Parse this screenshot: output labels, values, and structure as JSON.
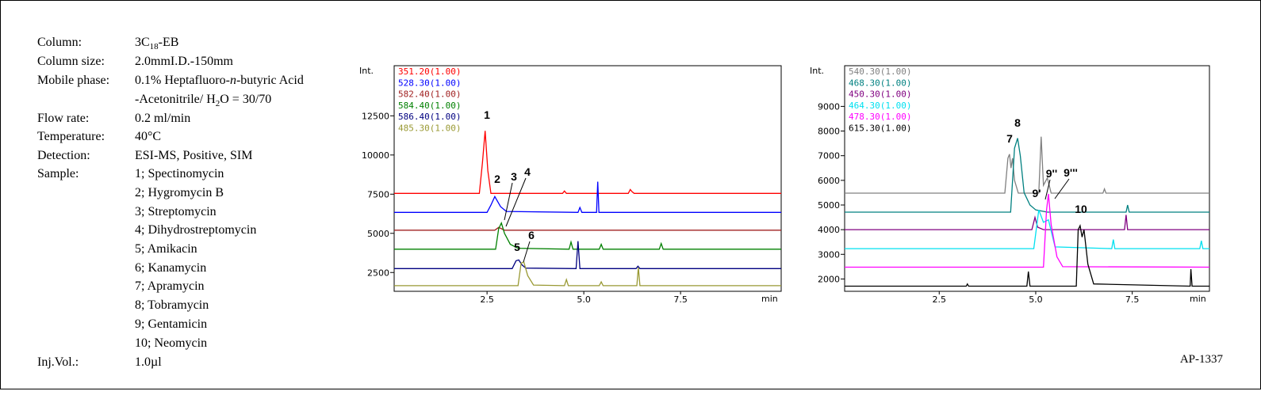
{
  "conditions": [
    {
      "label": "Column:",
      "value": [
        "3C",
        "18",
        "-EB"
      ]
    },
    {
      "label": "Column size:",
      "value": [
        "2.0mmI.D.-150mm"
      ]
    },
    {
      "label": "Mobile phase:",
      "value": [
        "0.1% Heptafluoro-",
        "n",
        "-butyric Acid"
      ],
      "value2": [
        "-Acetonitrile/ H",
        "2",
        "O = 30/70"
      ]
    },
    {
      "label": "Flow rate:",
      "value": [
        "0.2 ml/min"
      ]
    },
    {
      "label": "Temperature:",
      "value": [
        "40°C"
      ]
    },
    {
      "label": "Detection:",
      "value": [
        "ESI-MS, Positive, SIM"
      ]
    },
    {
      "label": "Sample:",
      "values": [
        "1; Spectinomycin",
        "2; Hygromycin B",
        "3; Streptomycin",
        "4; Dihydrostreptomycin",
        "5; Amikacin",
        "6; Kanamycin",
        "7; Apramycin",
        "8; Tobramycin",
        "9; Gentamicin",
        "10; Neomycin"
      ]
    },
    {
      "label": "Inj.Vol.:",
      "value": [
        "1.0µl"
      ]
    }
  ],
  "code": "AP-1337",
  "chart_data": [
    {
      "type": "line",
      "y_label": "Int.",
      "x_label": "min",
      "xlim": [
        0.1,
        10.1
      ],
      "xticks": [
        2.5,
        {
          "value": 5,
          "label": "5.0"
        },
        7.5
      ],
      "ylim": [
        1300,
        15700
      ],
      "yticks": [
        2500,
        5000,
        7500,
        10000,
        12500
      ],
      "annotations": [
        "1",
        "2",
        "3",
        "4",
        "5",
        "6"
      ],
      "series": [
        {
          "name": "351.20(1.00)",
          "color": "#ff0000",
          "x": [
            0.1,
            2.3,
            2.38,
            2.45,
            2.52,
            2.6,
            4.45,
            4.5,
            4.55,
            6.15,
            6.2,
            6.25,
            6.3,
            10.1
          ],
          "values": [
            7550,
            7550,
            9500,
            11540,
            9000,
            7550,
            7550,
            7700,
            7550,
            7550,
            7800,
            7650,
            7550,
            7550
          ]
        },
        {
          "name": "528.30(1.00)",
          "color": "#0000ff",
          "x": [
            0.1,
            2.5,
            2.6,
            2.7,
            2.85,
            3.0,
            4.85,
            4.9,
            4.95,
            5.33,
            5.36,
            5.39,
            10.1
          ],
          "values": [
            6340,
            6340,
            6800,
            7350,
            6700,
            6400,
            6340,
            6650,
            6340,
            6340,
            8300,
            6340,
            6340
          ]
        },
        {
          "name": "582.40(1.00)",
          "color": "#a02020",
          "x": [
            0.1,
            2.7,
            2.8,
            2.95,
            10.1
          ],
          "values": [
            5200,
            5200,
            5380,
            5200,
            5200
          ]
        },
        {
          "name": "584.40(1.00)",
          "color": "#008000",
          "x": [
            0.1,
            2.72,
            2.8,
            2.87,
            2.95,
            3.1,
            3.3,
            4.62,
            4.67,
            4.72,
            5.4,
            5.45,
            5.5,
            6.95,
            7.0,
            7.05,
            10.1
          ],
          "values": [
            3990,
            3990,
            5300,
            5660,
            5000,
            4300,
            4050,
            3990,
            4450,
            3990,
            3990,
            4300,
            3990,
            3990,
            4350,
            3990,
            3990
          ]
        },
        {
          "name": "586.40(1.00)",
          "color": "#000080",
          "x": [
            0.1,
            3.15,
            3.25,
            3.32,
            3.4,
            3.5,
            4.8,
            4.85,
            4.9,
            6.35,
            6.4,
            6.45,
            10.1
          ],
          "values": [
            2750,
            2750,
            3250,
            3300,
            3000,
            2780,
            2750,
            4500,
            2750,
            2750,
            2900,
            2750,
            2750
          ]
        },
        {
          "name": "485.30(1.00)",
          "color": "#999933",
          "x": [
            0.1,
            3.3,
            3.38,
            3.45,
            3.55,
            3.7,
            4.5,
            4.55,
            4.6,
            5.4,
            5.45,
            5.5,
            6.37,
            6.41,
            6.45,
            10.1
          ],
          "values": [
            1660,
            1660,
            3100,
            3170,
            2300,
            1700,
            1660,
            2050,
            1660,
            1660,
            1900,
            1660,
            1660,
            2820,
            1660,
            1660
          ]
        }
      ]
    },
    {
      "type": "line",
      "y_label": "Int.",
      "x_label": "min",
      "xlim": [
        0.05,
        9.5
      ],
      "xticks": [
        2.5,
        {
          "value": 5,
          "label": "5.0"
        },
        7.5
      ],
      "ylim": [
        1500,
        10650
      ],
      "yticks": [
        2000,
        3000,
        4000,
        5000,
        6000,
        7000,
        8000,
        9000
      ],
      "annotations": [
        "7",
        "8",
        "9'",
        "9''",
        "9'''",
        "10"
      ],
      "series": [
        {
          "name": "540.30(1.00)",
          "color": "#808080",
          "x": [
            0.05,
            4.2,
            4.28,
            4.32,
            4.36,
            4.4,
            4.45,
            4.55,
            5.08,
            5.14,
            5.2,
            5.3,
            5.4,
            6.74,
            6.78,
            6.82,
            9.5
          ],
          "values": [
            5480,
            5480,
            6900,
            7060,
            6500,
            6900,
            6000,
            5480,
            5480,
            7770,
            5800,
            6100,
            5480,
            5480,
            5650,
            5480,
            5480
          ]
        },
        {
          "name": "468.30(1.00)",
          "color": "#008080",
          "x": [
            0.05,
            4.35,
            4.45,
            4.53,
            4.6,
            4.7,
            4.85,
            5.0,
            5.3,
            7.34,
            7.38,
            7.42,
            9.5
          ],
          "values": [
            4710,
            4710,
            7300,
            7710,
            7000,
            5500,
            5000,
            4800,
            4710,
            4710,
            5000,
            4710,
            4710
          ]
        },
        {
          "name": "450.30(1.00)",
          "color": "#800080",
          "x": [
            0.05,
            4.9,
            4.98,
            5.05,
            5.2,
            7.3,
            7.34,
            7.38,
            9.5
          ],
          "values": [
            4000,
            4000,
            4500,
            4100,
            4000,
            4000,
            4600,
            4000,
            4000
          ]
        },
        {
          "name": "464.30(1.00)",
          "color": "#00e0f0",
          "x": [
            0.05,
            4.95,
            5.08,
            5.2,
            5.33,
            5.5,
            6.97,
            7.01,
            7.05,
            9.25,
            9.29,
            9.33,
            9.5
          ],
          "values": [
            3230,
            3230,
            4800,
            4300,
            4400,
            3300,
            3230,
            3600,
            3230,
            3230,
            3550,
            3230,
            3230
          ]
        },
        {
          "name": "478.30(1.00)",
          "color": "#ff00ff",
          "x": [
            0.05,
            5.2,
            5.28,
            5.33,
            5.4,
            5.55,
            5.7,
            9.5
          ],
          "values": [
            2480,
            2480,
            4800,
            5450,
            4200,
            2900,
            2500,
            2480
          ]
        },
        {
          "name": "615.30(1.00)",
          "color": "#000000",
          "x": [
            0.05,
            3.2,
            3.23,
            3.26,
            4.77,
            4.81,
            4.85,
            6.05,
            6.1,
            6.15,
            6.2,
            6.25,
            6.35,
            6.5,
            9.0,
            9.02,
            9.05,
            9.5
          ],
          "values": [
            1710,
            1710,
            1800,
            1710,
            1710,
            2300,
            1710,
            1710,
            4000,
            4160,
            3700,
            4000,
            2600,
            1800,
            1710,
            2400,
            1710,
            1710
          ]
        }
      ]
    }
  ]
}
